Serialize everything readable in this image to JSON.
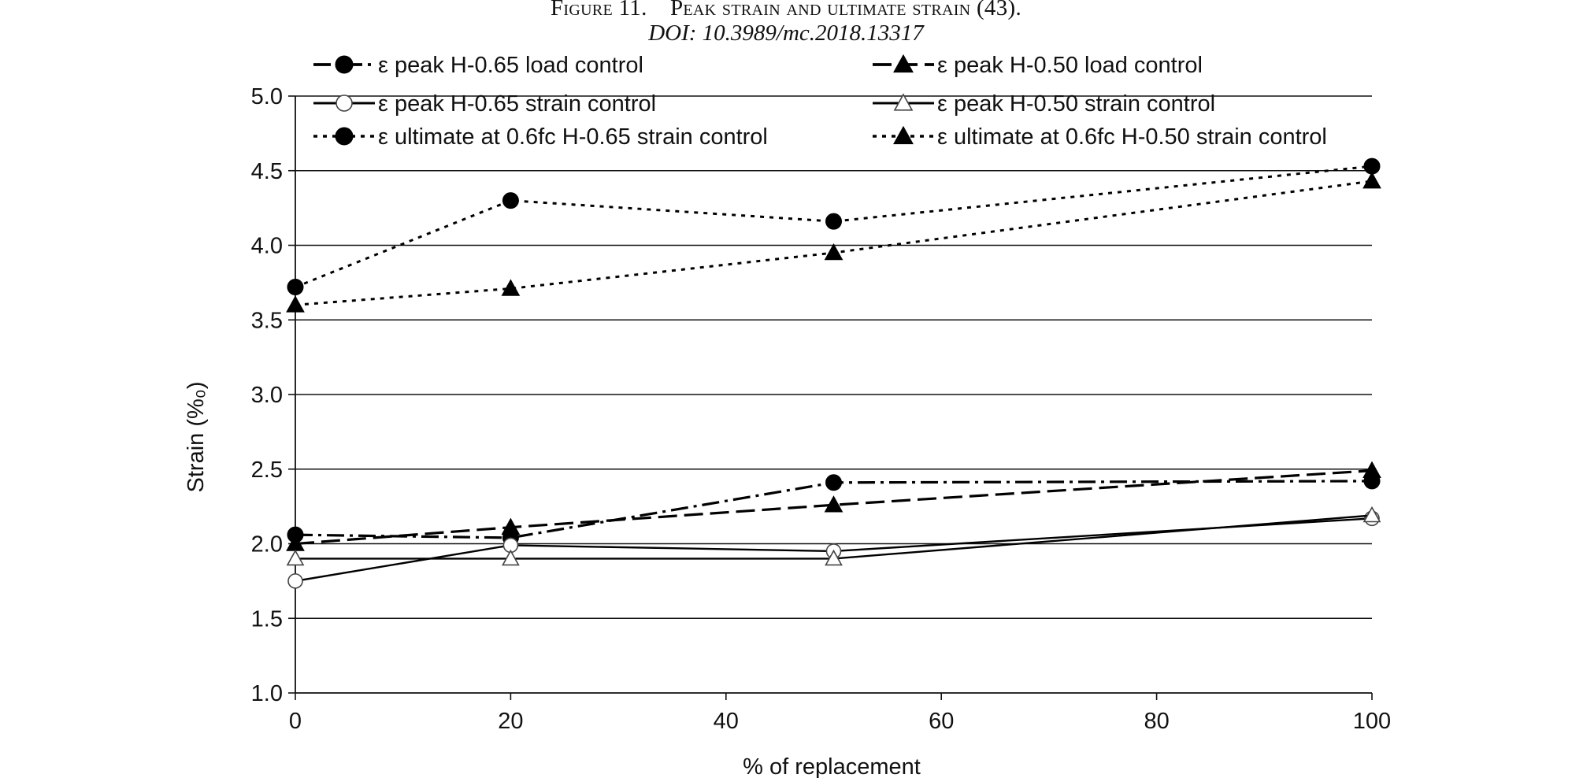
{
  "figure": {
    "caption": "Figure 11. Peak strain and ultimate strain (43).",
    "doi": "DOI: 10.3989/mc.2018.13317"
  },
  "chart_data": {
    "type": "line",
    "xlabel": "% of replacement",
    "ylabel": "Strain (%₀)",
    "xlim": [
      0,
      100
    ],
    "ylim": [
      1.0,
      5.0
    ],
    "xticks": [
      0,
      20,
      40,
      60,
      80,
      100
    ],
    "yticks": [
      1.0,
      1.5,
      2.0,
      2.5,
      3.0,
      3.5,
      4.0,
      4.5,
      5.0
    ],
    "grid": "horizontal",
    "legend_placement": "top",
    "x": [
      0,
      20,
      50,
      100
    ],
    "series": [
      {
        "name": "ε peak H-0.65 load control",
        "values": [
          2.06,
          2.04,
          2.41,
          2.42
        ],
        "marker": "filled-circle",
        "line": "dash-dot"
      },
      {
        "name": "ε peak H-0.50 load control",
        "values": [
          2.0,
          2.11,
          2.26,
          2.49
        ],
        "marker": "filled-triangle",
        "line": "long-dash"
      },
      {
        "name": "ε peak H-0.65 strain control",
        "values": [
          1.75,
          1.99,
          1.95,
          2.17
        ],
        "marker": "open-circle",
        "line": "solid"
      },
      {
        "name": "ε peak H-0.50 strain control",
        "values": [
          1.9,
          1.9,
          1.9,
          2.19
        ],
        "marker": "open-triangle",
        "line": "solid"
      },
      {
        "name": "ε ultimate at 0.6fc H-0.65 strain control",
        "values": [
          3.72,
          4.3,
          4.16,
          4.53
        ],
        "marker": "filled-circle",
        "line": "dotted"
      },
      {
        "name": "ε ultimate at 0.6fc H-0.50 strain control",
        "values": [
          3.6,
          3.71,
          3.95,
          4.43
        ],
        "marker": "filled-triangle",
        "line": "dotted"
      }
    ]
  }
}
